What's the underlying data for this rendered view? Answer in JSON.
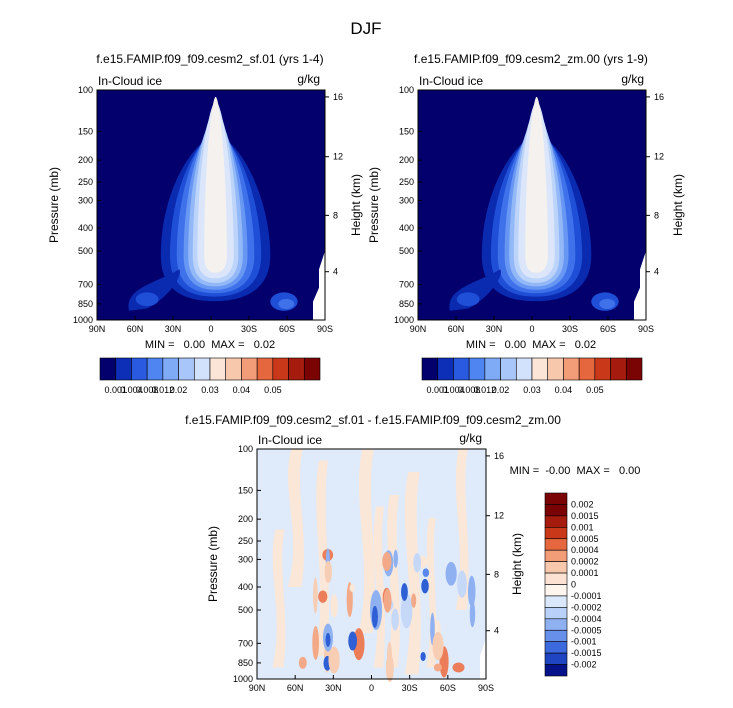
{
  "page_title": "DJF",
  "chart_data": [
    {
      "type": "heatmap",
      "title": "f.e15.FAMIP.f09_f09.cesm2_sf.01 (yrs 1-4)",
      "variable": "In-Cloud ice",
      "units": "g/kg",
      "ylabel": "Pressure (mb)",
      "y2label": "Height (km)",
      "x_ticks": [
        "90N",
        "60N",
        "30N",
        "0",
        "30S",
        "60S",
        "90S"
      ],
      "y_ticks": [
        "100",
        "150",
        "200",
        "250",
        "300",
        "400",
        "500",
        "700",
        "850",
        "1000"
      ],
      "y2_ticks": [
        "16",
        "12",
        "8",
        "4"
      ],
      "min_max_text": "MIN =   0.00  MAX =   0.02",
      "colorbar_labels": [
        "0.001",
        "0.004",
        "0.008",
        "0.012",
        "0.02",
        "0.03",
        "0.04",
        "0.05"
      ]
    },
    {
      "type": "heatmap",
      "title": "f.e15.FAMIP.f09_f09.cesm2_zm.00 (yrs 1-9)",
      "variable": "In-Cloud ice",
      "units": "g/kg",
      "ylabel": "Pressure (mb)",
      "y2label": "Height (km)",
      "x_ticks": [
        "90N",
        "60N",
        "30N",
        "0",
        "30S",
        "60S",
        "90S"
      ],
      "y_ticks": [
        "100",
        "150",
        "200",
        "250",
        "300",
        "400",
        "500",
        "700",
        "850",
        "1000"
      ],
      "y2_ticks": [
        "16",
        "12",
        "8",
        "4"
      ],
      "min_max_text": "MIN =   0.00  MAX =   0.02",
      "colorbar_labels": [
        "0.001",
        "0.004",
        "0.008",
        "0.012",
        "0.02",
        "0.03",
        "0.04",
        "0.05"
      ]
    },
    {
      "type": "heatmap",
      "title": "f.e15.FAMIP.f09_f09.cesm2_sf.01 - f.e15.FAMIP.f09_f09.cesm2_zm.00",
      "variable": "In-Cloud ice",
      "units": "g/kg",
      "ylabel": "Pressure (mb)",
      "y2label": "Height (km)",
      "x_ticks": [
        "90N",
        "60N",
        "30N",
        "0",
        "30S",
        "60S",
        "90S"
      ],
      "y_ticks": [
        "100",
        "150",
        "200",
        "250",
        "300",
        "400",
        "500",
        "700",
        "850",
        "1000"
      ],
      "y2_ticks": [
        "16",
        "12",
        "8",
        "4"
      ],
      "min_max_text": "MIN =  -0.00  MAX =   0.00",
      "colorbar_labels": [
        "0.002",
        "0.0015",
        "0.001",
        "0.0005",
        "0.0004",
        "0.0002",
        "0.0001",
        "0",
        "-0.0001",
        "-0.0002",
        "-0.0004",
        "-0.0005",
        "-0.001",
        "-0.0015",
        "-0.002"
      ]
    }
  ],
  "colors": {
    "field_seq": [
      "#03006e",
      "#0a2ab0",
      "#1f4fd6",
      "#3f72ea",
      "#6797f3",
      "#93b8f7",
      "#bcd3fa",
      "#dbe6fb",
      "#f4f1ee"
    ],
    "cbar_seq": [
      "#03006e",
      "#0d2fb8",
      "#2a5ae0",
      "#4f85f0",
      "#7eaaf6",
      "#a9c6fa",
      "#d3e2fc",
      "#fbe5d7",
      "#f8c8ad",
      "#f29c78",
      "#e4673e",
      "#c93818",
      "#a51b0d",
      "#7a0403"
    ],
    "diff_bg": "#dfeafb",
    "diff_pos": [
      "#fbe7d8",
      "#f7cdb3",
      "#f3a987",
      "#ec7d59",
      "#d84a2c"
    ],
    "diff_neg": [
      "#c6d8f8",
      "#8fb1f1",
      "#5b87ea",
      "#2f5fd4",
      "#1b3aa3"
    ],
    "diff_cbar": [
      "#7a0403",
      "#a51b0d",
      "#c93818",
      "#e4673e",
      "#f29c78",
      "#f8c8ad",
      "#fbe2d2",
      "#fdf5ee",
      "#dbe8fb",
      "#b9d1f8",
      "#8fb1f1",
      "#6690ea",
      "#3d69df",
      "#1f45c2",
      "#06128a"
    ]
  }
}
